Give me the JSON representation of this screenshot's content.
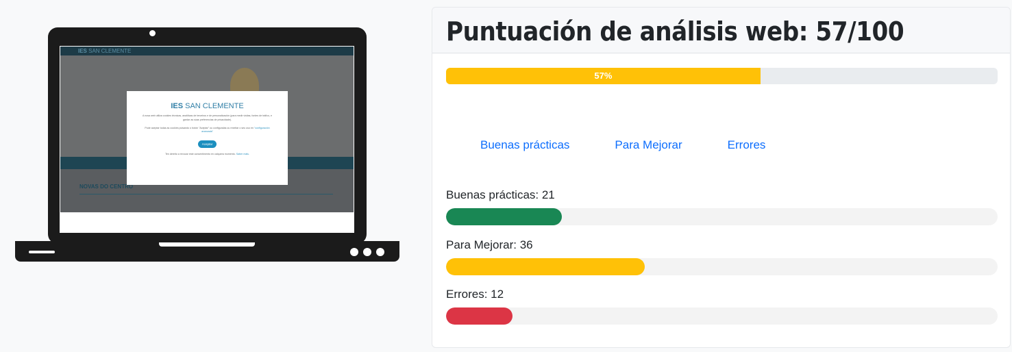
{
  "laptop_screen": {
    "site_name_bold": "IES",
    "site_name_rest": " SAN CLEMENTE",
    "section_title": "NOVAS DO CENTRO",
    "modal": {
      "brand_bold": "IES",
      "brand_rest": " SAN CLEMENTE",
      "text1": "A nosa web utiliza cookies técnicas, analíticas de terceiros e de personalización (para medir visitas, fontes de tráfico, e gardar as súas preferencias de privacidade).",
      "text2": "Pode aceptar todas as cookies pulsando o botón \"Aceptar\" ou configuralas ou rexeitar o seu uso en",
      "text2_link": "\"configuración avanzada\"",
      "accept_label": "Aceptar",
      "footer": "Ten dereito a revocar este consentimento en calquera momento.",
      "footer_link": "Saber máis."
    }
  },
  "card": {
    "title": "Puntuación de análisis web: 57/100",
    "score_percent": 57,
    "score_label": "57%",
    "tabs": [
      "Buenas prácticas",
      "Para Mejorar",
      "Errores"
    ],
    "metrics": [
      {
        "label": "Buenas prácticas: 21",
        "value": 21,
        "color": "#198754"
      },
      {
        "label": "Para Mejorar: 36",
        "value": 36,
        "color": "#ffc107"
      },
      {
        "label": "Errores: 12",
        "value": 12,
        "color": "#dc3545"
      }
    ]
  }
}
